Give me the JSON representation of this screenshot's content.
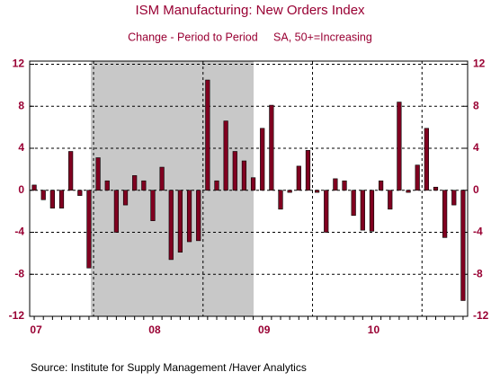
{
  "chart_data": {
    "type": "bar",
    "title": "ISM Manufacturing: New Orders Index",
    "subtitle": "Change - Period to Period     SA, 50+=Increasing",
    "source": "Source:  Institute for Supply Management /Haver Analytics",
    "categories": [
      "07",
      null,
      null,
      null,
      null,
      null,
      null,
      null,
      null,
      null,
      null,
      null,
      null,
      "08",
      null,
      null,
      null,
      null,
      null,
      null,
      null,
      null,
      null,
      null,
      null,
      "09",
      null,
      null,
      null,
      null,
      null,
      null,
      null,
      null,
      null,
      null,
      null,
      "10",
      null,
      null,
      null,
      null,
      null,
      null,
      null,
      null,
      null,
      null
    ],
    "values": [
      0.5,
      -0.9,
      -1.7,
      -1.7,
      3.7,
      -0.5,
      -7.4,
      3.1,
      0.9,
      -4.0,
      -1.4,
      1.4,
      0.9,
      -2.9,
      2.2,
      -6.6,
      -5.9,
      -4.9,
      -4.8,
      10.5,
      0.9,
      6.6,
      3.7,
      2.8,
      1.2,
      5.9,
      8.1,
      -1.8,
      -0.2,
      2.3,
      3.8,
      -0.2,
      -4.0,
      1.1,
      0.9,
      -2.4,
      -3.8,
      -3.9,
      0.9,
      -1.8,
      8.4,
      -0.2,
      2.4,
      5.9,
      0.3,
      -4.5,
      -1.4,
      -10.5
    ],
    "color": "#800020",
    "ylim": [
      -12,
      12.3
    ],
    "yticks": [
      12,
      8,
      4,
      0,
      -4,
      -8,
      -12
    ],
    "grid": true
  }
}
